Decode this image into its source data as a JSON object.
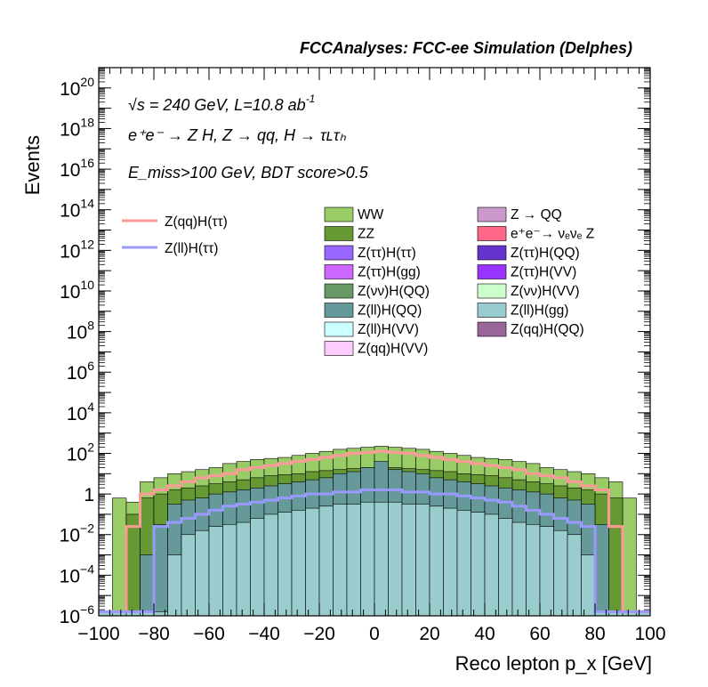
{
  "chart_data": {
    "type": "histogram",
    "title": "FCCAnalyses: FCC-ee Simulation (Delphes)",
    "xlabel": "Reco lepton p_x [GeV]",
    "ylabel": "Events",
    "xlim": [
      -100,
      100
    ],
    "ylim": [
      1e-06,
      1e+21
    ],
    "yscale": "log",
    "bin_width": 5,
    "bin_edges_start": -100,
    "x_tick_labels": [
      "−100",
      "−80",
      "−60",
      "−40",
      "−20",
      "0",
      "20",
      "40",
      "60",
      "80",
      "100"
    ],
    "annotations": {
      "energy": "√s = 240 GeV, L=10.8 ab",
      "energy_exp": "-1",
      "process": "e⁺e⁻ → Z H, Z → qq, H → τʟτₕ",
      "cut": "E_miss>100 GeV, BDT score>0.5"
    },
    "legend_lines": [
      {
        "label": "Z(qq)H(ττ)",
        "color": "#ff9999"
      },
      {
        "label": "Z(ll)H(ττ)",
        "color": "#9999ff"
      }
    ],
    "legend_fills": [
      {
        "label": "WW",
        "color": "#99cc66"
      },
      {
        "label": "Z → QQ",
        "color": "#cc99cc"
      },
      {
        "label": "ZZ",
        "color": "#669933"
      },
      {
        "label": "e⁺e⁻→ νₑνₑ Z",
        "color": "#ff6688"
      },
      {
        "label": "Z(ττ)H(ττ)",
        "color": "#9966ff"
      },
      {
        "label": "Z(ττ)H(QQ)",
        "color": "#6633cc"
      },
      {
        "label": "Z(ττ)H(gg)",
        "color": "#cc66ff"
      },
      {
        "label": "Z(ττ)H(VV)",
        "color": "#9933ff"
      },
      {
        "label": "Z(νν)H(QQ)",
        "color": "#669966"
      },
      {
        "label": "Z(νν)H(VV)",
        "color": "#ccffcc"
      },
      {
        "label": "Z(ll)H(QQ)",
        "color": "#669999"
      },
      {
        "label": "Z(ll)H(gg)",
        "color": "#99cccc"
      },
      {
        "label": "Z(ll)H(VV)",
        "color": "#ccffff"
      },
      {
        "label": "Z(qq)H(QQ)",
        "color": "#996699"
      },
      {
        "label": "Z(qq)H(VV)",
        "color": "#ffccff"
      }
    ],
    "stack_outer_log10": [
      -5.8,
      -0.2,
      -0.4,
      0.6,
      0.8,
      1.0,
      1.1,
      1.2,
      1.3,
      1.5,
      1.6,
      1.7,
      1.75,
      1.8,
      1.9,
      2.0,
      2.1,
      2.2,
      2.25,
      2.3,
      2.35,
      2.3,
      2.25,
      2.2,
      2.1,
      2.0,
      1.9,
      1.8,
      1.75,
      1.7,
      1.6,
      1.5,
      1.3,
      1.2,
      1.1,
      1.0,
      0.8,
      0.6,
      -0.2,
      -5.8
    ],
    "stack_zz_log10": [
      -5.8,
      -5.8,
      -1.0,
      -0.2,
      0.0,
      0.2,
      0.3,
      0.4,
      0.5,
      0.6,
      0.7,
      0.8,
      0.9,
      0.95,
      1.0,
      1.1,
      1.15,
      1.2,
      1.25,
      1.3,
      1.4,
      1.3,
      1.25,
      1.2,
      1.15,
      1.1,
      1.0,
      0.95,
      0.9,
      0.8,
      0.7,
      0.6,
      0.5,
      0.4,
      0.3,
      0.2,
      0.0,
      -0.2,
      -5.8,
      -5.8
    ],
    "stack_mid_log10": [
      -5.8,
      -5.8,
      -5.8,
      -3.0,
      -1.5,
      -0.5,
      -0.3,
      -0.2,
      0.0,
      0.1,
      0.2,
      0.3,
      0.4,
      0.5,
      0.6,
      0.7,
      0.8,
      1.0,
      1.1,
      1.3,
      1.6,
      1.2,
      1.1,
      1.0,
      0.8,
      0.7,
      0.6,
      0.5,
      0.4,
      0.3,
      0.2,
      0.1,
      0.0,
      -0.2,
      -0.3,
      -0.5,
      -1.5,
      -5.8,
      -5.8,
      -5.8
    ],
    "stack_llhgg_log10": [
      -5.8,
      -5.8,
      -5.8,
      -5.8,
      -5.8,
      -3.0,
      -2.0,
      -1.8,
      -1.6,
      -1.5,
      -1.4,
      -1.2,
      -1.0,
      -0.9,
      -0.8,
      -0.7,
      -0.6,
      -0.5,
      -0.5,
      -0.4,
      -0.4,
      -0.4,
      -0.5,
      -0.5,
      -0.6,
      -0.7,
      -0.8,
      -0.9,
      -1.0,
      -1.2,
      -1.4,
      -1.5,
      -1.6,
      -1.8,
      -2.0,
      -3.0,
      -5.8,
      -5.8,
      -5.8,
      -5.8
    ],
    "qqH_tautau_log10": [
      -5.8,
      -5.8,
      -1.6,
      0.0,
      0.2,
      0.4,
      0.6,
      0.8,
      0.9,
      1.0,
      1.2,
      1.3,
      1.4,
      1.5,
      1.6,
      1.7,
      1.8,
      1.9,
      2.0,
      2.05,
      2.1,
      2.05,
      2.0,
      1.9,
      1.8,
      1.7,
      1.6,
      1.5,
      1.4,
      1.3,
      1.2,
      1.0,
      0.9,
      0.8,
      0.6,
      0.4,
      0.2,
      -1.6,
      -5.8,
      -5.8
    ],
    "llH_tautau_log10": [
      -5.8,
      -5.8,
      -5.8,
      -5.8,
      -1.6,
      -1.4,
      -1.2,
      -1.0,
      -0.8,
      -0.6,
      -0.5,
      -0.4,
      -0.3,
      -0.2,
      -0.1,
      0.0,
      0.0,
      0.1,
      0.1,
      0.2,
      0.2,
      0.2,
      0.1,
      0.1,
      0.0,
      0.0,
      -0.1,
      -0.2,
      -0.3,
      -0.4,
      -0.6,
      -0.8,
      -1.0,
      -1.2,
      -1.4,
      -1.6,
      -5.8,
      -5.8,
      -5.8,
      -5.8
    ]
  }
}
